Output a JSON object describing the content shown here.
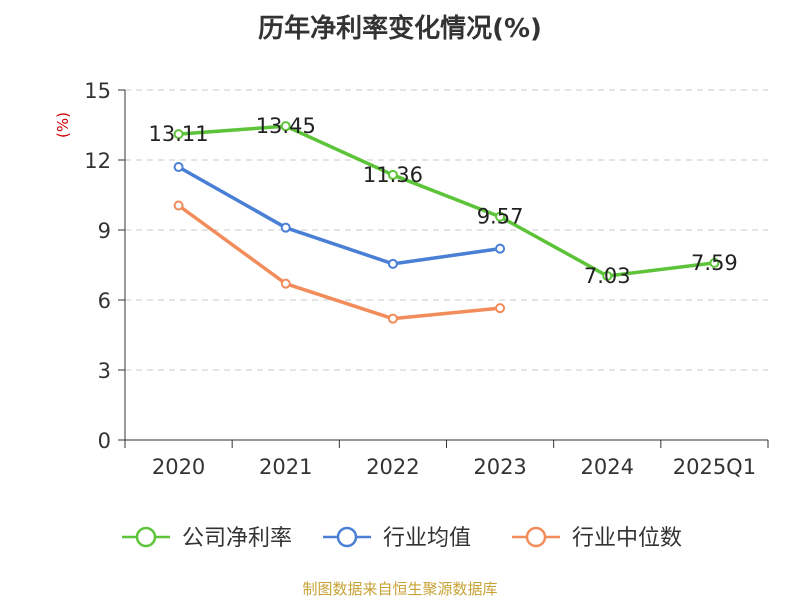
{
  "chart_data": {
    "type": "line",
    "title": "历年净利率变化情况(%)",
    "ylabel": "(%)",
    "categories": [
      "2020",
      "2021",
      "2022",
      "2023",
      "2024",
      "2025Q1"
    ],
    "ylim": [
      0,
      15
    ],
    "yticks": [
      0,
      3,
      6,
      9,
      12,
      15
    ],
    "grid": true,
    "legend_position": "bottom",
    "series": [
      {
        "name": "公司净利率",
        "color": "#5dc43a",
        "values": [
          13.11,
          13.45,
          11.36,
          9.57,
          7.03,
          7.59
        ],
        "labels": [
          "13.11",
          "13.45",
          "11.36",
          "9.57",
          "7.03",
          "7.59"
        ]
      },
      {
        "name": "行业均值",
        "color": "#4a7fd6",
        "values": [
          11.7,
          9.1,
          7.55,
          8.2,
          null,
          null
        ]
      },
      {
        "name": "行业中位数",
        "color": "#f28c5a",
        "values": [
          10.05,
          6.7,
          5.2,
          5.65,
          null,
          null
        ]
      }
    ]
  },
  "source": "制图数据来自恒生聚源数据库"
}
